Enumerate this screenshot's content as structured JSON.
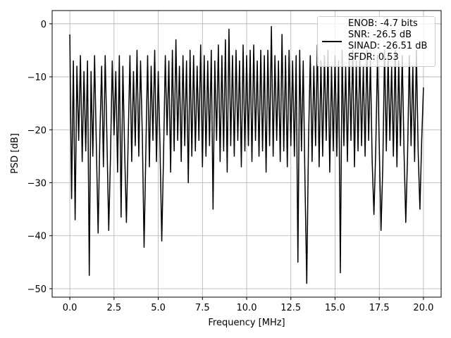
{
  "chart_data": {
    "type": "line",
    "xlabel": "Frequency [MHz]",
    "ylabel": "PSD [dB]",
    "xlim": [
      -1,
      21
    ],
    "ylim": [
      -51.6,
      2.5
    ],
    "xticks": [
      {
        "value": 0,
        "label": "0.0"
      },
      2.5,
      {
        "value": 5,
        "label": "5.0"
      },
      7.5,
      {
        "value": 10,
        "label": "10.0"
      },
      12.5,
      {
        "value": 15,
        "label": "15.0"
      },
      17.5,
      {
        "value": 20,
        "label": "20.0"
      }
    ],
    "yticks": [
      {
        "value": -50,
        "label": "−50"
      },
      {
        "value": -40,
        "label": "−40"
      },
      {
        "value": -30,
        "label": "−30"
      },
      {
        "value": -20,
        "label": "−20"
      },
      {
        "value": -10,
        "label": "−10"
      },
      0
    ],
    "grid": true,
    "legend": "upper right",
    "x": [
      0,
      0.1,
      0.2,
      0.3,
      0.4,
      0.5,
      0.6,
      0.7,
      0.8,
      0.9,
      1,
      1.1,
      1.2,
      1.3,
      1.4,
      1.5,
      1.6,
      1.7,
      1.8,
      1.9,
      2,
      2.1,
      2.2,
      2.3,
      2.4,
      2.5,
      2.6,
      2.7,
      2.8,
      2.9,
      3,
      3.1,
      3.2,
      3.3,
      3.4,
      3.5,
      3.6,
      3.7,
      3.8,
      3.9,
      4,
      4.1,
      4.2,
      4.3,
      4.4,
      4.5,
      4.6,
      4.7,
      4.8,
      4.9,
      5,
      5.1,
      5.2,
      5.3,
      5.4,
      5.5,
      5.6,
      5.7,
      5.8,
      5.9,
      6,
      6.1,
      6.2,
      6.3,
      6.4,
      6.5,
      6.6,
      6.7,
      6.8,
      6.9,
      7,
      7.1,
      7.2,
      7.3,
      7.4,
      7.5,
      7.6,
      7.7,
      7.8,
      7.9,
      8,
      8.1,
      8.2,
      8.3,
      8.4,
      8.5,
      8.6,
      8.7,
      8.8,
      8.9,
      9,
      9.1,
      9.2,
      9.3,
      9.4,
      9.5,
      9.6,
      9.7,
      9.8,
      9.9,
      10,
      10.1,
      10.2,
      10.3,
      10.4,
      10.5,
      10.6,
      10.7,
      10.8,
      10.9,
      11,
      11.1,
      11.2,
      11.3,
      11.4,
      11.5,
      11.6,
      11.7,
      11.8,
      11.9,
      12,
      12.1,
      12.2,
      12.3,
      12.4,
      12.5,
      12.6,
      12.7,
      12.8,
      12.9,
      13,
      13.1,
      13.2,
      13.3,
      13.4,
      13.5,
      13.6,
      13.7,
      13.8,
      13.9,
      14,
      14.1,
      14.2,
      14.3,
      14.4,
      14.5,
      14.6,
      14.7,
      14.8,
      14.9,
      15,
      15.1,
      15.2,
      15.3,
      15.4,
      15.5,
      15.6,
      15.7,
      15.8,
      15.9,
      16,
      16.1,
      16.2,
      16.3,
      16.4,
      16.5,
      16.6,
      16.7,
      16.8,
      16.9,
      17,
      17.1,
      17.2,
      17.3,
      17.4,
      17.5,
      17.6,
      17.7,
      17.8,
      17.9,
      18,
      18.1,
      18.2,
      18.3,
      18.4,
      18.5,
      18.6,
      18.7,
      18.8,
      18.9,
      19,
      19.1,
      19.2,
      19.3,
      19.4,
      19.5,
      19.6,
      19.7,
      19.8,
      19.9,
      20
    ],
    "series": [
      {
        "name": "ENOB: -4.7 bits\nSNR: -26.5 dB\nSINAD: -26.51 dB\nSFDR: 0.53",
        "color": "#000000",
        "values": [
          -2,
          -33,
          -7,
          -37,
          -8,
          -22,
          -6,
          -26,
          -9,
          -24,
          -7,
          -47.5,
          -9,
          -25,
          -6,
          -23,
          -39.5,
          -21,
          -8,
          -27,
          -6,
          -22,
          -39,
          -25,
          -7,
          -21,
          -9,
          -28,
          -6,
          -36.5,
          -8,
          -24,
          -37.5,
          -22,
          -6,
          -26,
          -9,
          -23,
          -5,
          -25,
          -7,
          -21,
          -42.2,
          -24,
          -6,
          -27,
          -8,
          -22,
          -5,
          -26,
          -9,
          -23,
          -41,
          -25,
          -6,
          -21,
          -7,
          -28,
          -5,
          -24,
          -3,
          -22,
          -8,
          -26,
          -6,
          -23,
          -7,
          -30,
          -5,
          -25,
          -6,
          -24,
          -8,
          -22,
          -4,
          -27,
          -6,
          -25,
          -7,
          -23,
          -5,
          -35,
          -7,
          -22,
          -4,
          -26,
          -6,
          -24,
          -3,
          -28,
          -1,
          -23,
          -6,
          -25,
          -5,
          -22,
          -7,
          -27,
          -4,
          -24,
          -6,
          -23,
          -5,
          -26,
          -4,
          -22,
          -7,
          -25,
          -5,
          -24,
          -6,
          -28,
          -5,
          -23,
          -0.5,
          -25,
          -6,
          -22,
          -7,
          -26,
          -2,
          -24,
          -6,
          -27,
          -5,
          -23,
          -7,
          -25,
          -6,
          -45,
          -5,
          -24,
          -7,
          -30,
          -49,
          -22,
          -6,
          -26,
          -8,
          -23,
          -4,
          -27,
          -7,
          -25,
          -6,
          -22,
          -5,
          -28,
          -8,
          -24,
          -6,
          -25,
          -7,
          -47,
          -5,
          -23,
          -8,
          -26,
          -6,
          -22,
          -5,
          -27,
          -7,
          -24,
          -6,
          -23,
          -8,
          -25,
          -5,
          -22,
          -7,
          -26,
          -36,
          -24,
          -6,
          -23,
          -39,
          -27,
          -5,
          -24,
          -6,
          -22,
          -8,
          -25,
          -5,
          -27,
          -7,
          -23,
          -6,
          -24,
          -37.5,
          -25,
          -6,
          -23,
          -8,
          -26,
          -5,
          -24,
          -35,
          -22,
          -12
        ]
      }
    ]
  }
}
